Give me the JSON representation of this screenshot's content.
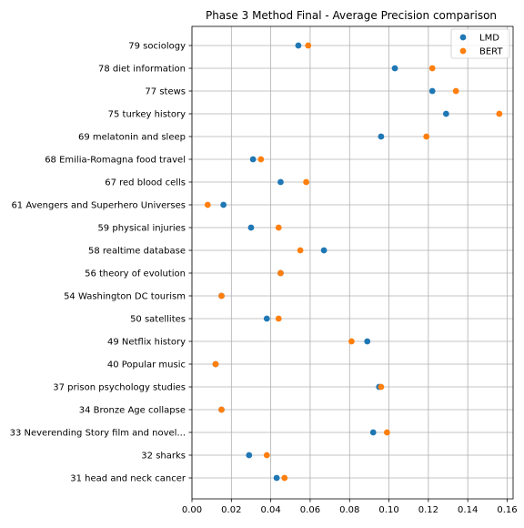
{
  "chart_data": {
    "type": "scatter",
    "title": "Phase 3 Method Final - Average Precision comparison",
    "xlabel": "",
    "ylabel": "",
    "xlim": [
      0.0,
      0.163
    ],
    "x_ticks": [
      0.0,
      0.02,
      0.04,
      0.06,
      0.08,
      0.1,
      0.12,
      0.14,
      0.16
    ],
    "x_tick_labels": [
      "0.00",
      "0.02",
      "0.04",
      "0.06",
      "0.08",
      "0.10",
      "0.12",
      "0.14",
      "0.16"
    ],
    "grid": true,
    "legend_position": "top-right",
    "categories": [
      "79 sociology",
      "78 diet information",
      "77 stews",
      "75 turkey history",
      "69 melatonin and sleep",
      "68 Emilia-Romagna food travel",
      "67 red blood cells",
      "61 Avengers and Superhero Universes",
      "59 physical injuries",
      "58 realtime database",
      "56 theory of evolution",
      "54 Washington DC tourism",
      "50 satellites",
      "49 Netflix history",
      "40 Popular music",
      "37 prison psychology studies",
      "34 Bronze Age collapse",
      "33 Neverending Story film and novel...",
      "32 sharks",
      "31 head and neck cancer"
    ],
    "series": [
      {
        "name": "LMD",
        "color": "#1f77b4",
        "values": [
          0.054,
          0.103,
          0.122,
          0.129,
          0.096,
          0.031,
          0.045,
          0.016,
          0.03,
          0.067,
          0.045,
          0.015,
          0.038,
          0.089,
          0.012,
          0.095,
          0.015,
          0.092,
          0.029,
          0.043
        ]
      },
      {
        "name": "BERT",
        "color": "#ff7f0e",
        "values": [
          0.059,
          0.122,
          0.134,
          0.156,
          0.119,
          0.035,
          0.058,
          0.008,
          0.044,
          0.055,
          0.045,
          0.015,
          0.044,
          0.081,
          0.012,
          0.096,
          0.015,
          0.099,
          0.038,
          0.047
        ]
      }
    ]
  }
}
